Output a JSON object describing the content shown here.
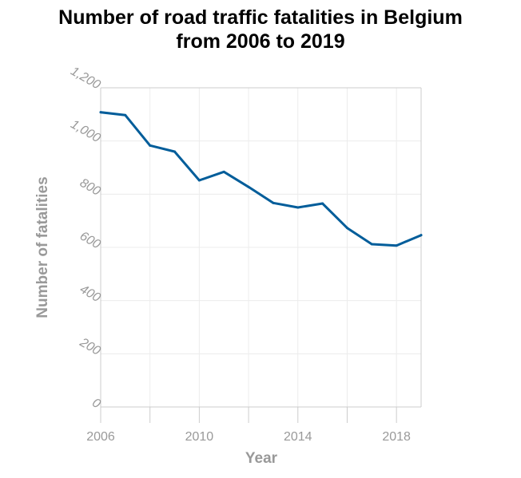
{
  "chart_data": {
    "type": "line",
    "title_lines": [
      "Number of road traffic fatalities in Belgium",
      "from 2006 to 2019"
    ],
    "xlabel": "Year",
    "ylabel": "Number of fatalities",
    "x_ticks": [
      2006,
      2008,
      2010,
      2012,
      2014,
      2016,
      2018
    ],
    "x_tick_labels": [
      {
        "value": 2006,
        "label": "2006"
      },
      {
        "value": 2010,
        "label": "2010"
      },
      {
        "value": 2014,
        "label": "2014"
      },
      {
        "value": 2018,
        "label": "2018"
      }
    ],
    "y_ticks": [
      {
        "value": 0,
        "label": "0"
      },
      {
        "value": 200,
        "label": "200"
      },
      {
        "value": 400,
        "label": "400"
      },
      {
        "value": 600,
        "label": "600"
      },
      {
        "value": 800,
        "label": "800"
      },
      {
        "value": 1000,
        "label": "1,000"
      },
      {
        "value": 1200,
        "label": "1,200"
      }
    ],
    "xlim": [
      2006,
      2019
    ],
    "ylim": [
      0,
      1200
    ],
    "grid": true,
    "line_color": "#015d9a",
    "x": [
      2006,
      2007,
      2008,
      2009,
      2010,
      2011,
      2012,
      2013,
      2014,
      2015,
      2016,
      2017,
      2018,
      2019
    ],
    "values": [
      1108,
      1097,
      983,
      960,
      852,
      884,
      827,
      767,
      750,
      765,
      673,
      612,
      607,
      646
    ]
  }
}
